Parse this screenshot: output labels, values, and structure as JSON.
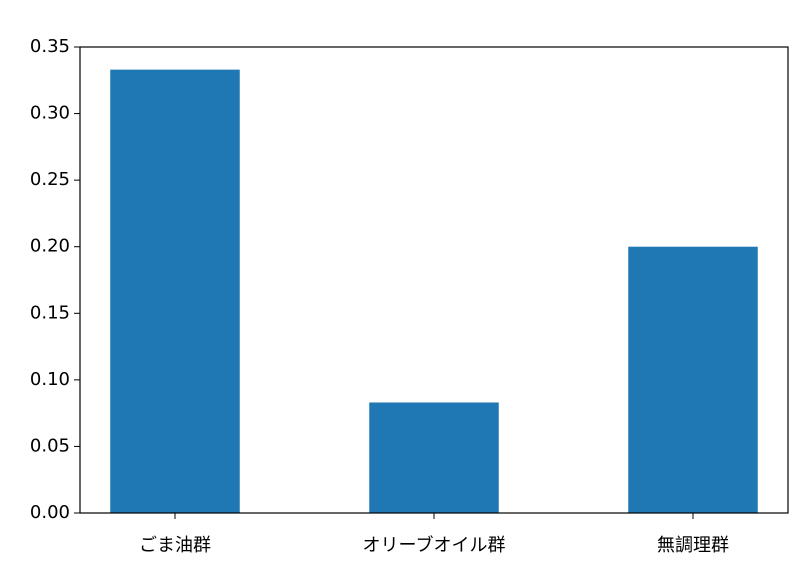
{
  "chart_data": {
    "type": "bar",
    "categories": [
      "ごま油群",
      "オリーブオイル群",
      "無調理群"
    ],
    "values": [
      0.333,
      0.083,
      0.2
    ],
    "color": "#1f77b4",
    "ylim": [
      0,
      0.35
    ],
    "yticks": [
      {
        "value": 0,
        "label": "0.00"
      },
      {
        "value": 0.05,
        "label": "0.05"
      },
      {
        "value": 0.1,
        "label": "0.10"
      },
      {
        "value": 0.15,
        "label": "0.15"
      },
      {
        "value": 0.2,
        "label": "0.20"
      },
      {
        "value": 0.25,
        "label": "0.25"
      },
      {
        "value": 0.3,
        "label": "0.30"
      },
      {
        "value": 0.35,
        "label": "0.35"
      }
    ],
    "grid": false
  }
}
